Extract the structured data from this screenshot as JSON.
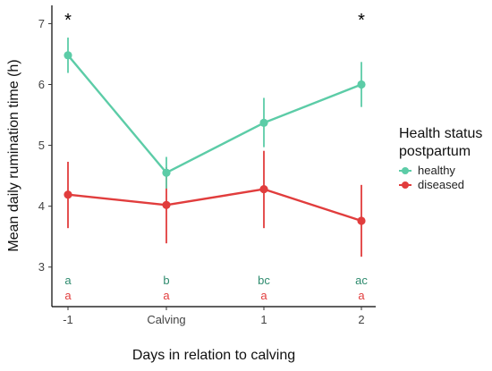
{
  "chart_data": {
    "type": "line",
    "xlabel": "Days in relation to calving",
    "ylabel": "Mean daily rumination time (h)",
    "categories": [
      "-1",
      "Calving",
      "1",
      "2"
    ],
    "ylim": [
      2.35,
      7.3
    ],
    "yticks": [
      3,
      4,
      5,
      6,
      7
    ],
    "grid": false,
    "legend": {
      "title_lines": [
        "Health status",
        "postpartum"
      ],
      "placement": "right"
    },
    "series": [
      {
        "name": "healthy",
        "color": "#5ccca7",
        "values": [
          6.48,
          4.55,
          5.37,
          6.0
        ],
        "lower": [
          6.19,
          4.29,
          4.97,
          5.63
        ],
        "upper": [
          6.77,
          4.81,
          5.78,
          6.37
        ],
        "letters": [
          "a",
          "b",
          "bc",
          "ac"
        ]
      },
      {
        "name": "diseased",
        "color": "#e13d3d",
        "values": [
          4.19,
          4.02,
          4.28,
          3.76
        ],
        "lower": [
          3.64,
          3.39,
          3.64,
          3.17
        ],
        "upper": [
          4.73,
          4.64,
          4.91,
          4.35
        ],
        "letters": [
          "a",
          "a",
          "a",
          "a"
        ]
      }
    ],
    "significance_markers": [
      {
        "category": "-1",
        "symbol": "*"
      },
      {
        "category": "2",
        "symbol": "*"
      }
    ]
  }
}
